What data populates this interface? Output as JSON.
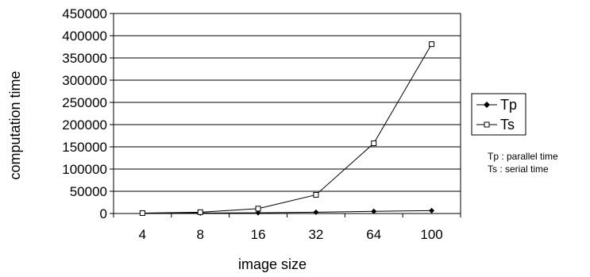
{
  "chart_data": {
    "type": "line",
    "title": "",
    "xlabel": "image size",
    "ylabel": "computation time",
    "categories": [
      "4",
      "8",
      "16",
      "32",
      "64",
      "100"
    ],
    "ylim": [
      0,
      450000
    ],
    "yticks": [
      "0",
      "50000",
      "100000",
      "150000",
      "200000",
      "250000",
      "300000",
      "350000",
      "400000",
      "450000"
    ],
    "grid": "horizontal",
    "legend_position": "right",
    "series": [
      {
        "name": "Tp",
        "marker": "filled-diamond",
        "values": [
          500,
          1000,
          1500,
          3000,
          5000,
          6500
        ]
      },
      {
        "name": "Ts",
        "marker": "open-square",
        "values": [
          1000,
          3000,
          11000,
          42000,
          158000,
          381000
        ]
      }
    ]
  },
  "notes": [
    "Tp : parallel time",
    "Ts : serial time"
  ],
  "colors": {
    "line": "#000000",
    "grid": "#000000",
    "background": "#ffffff"
  }
}
